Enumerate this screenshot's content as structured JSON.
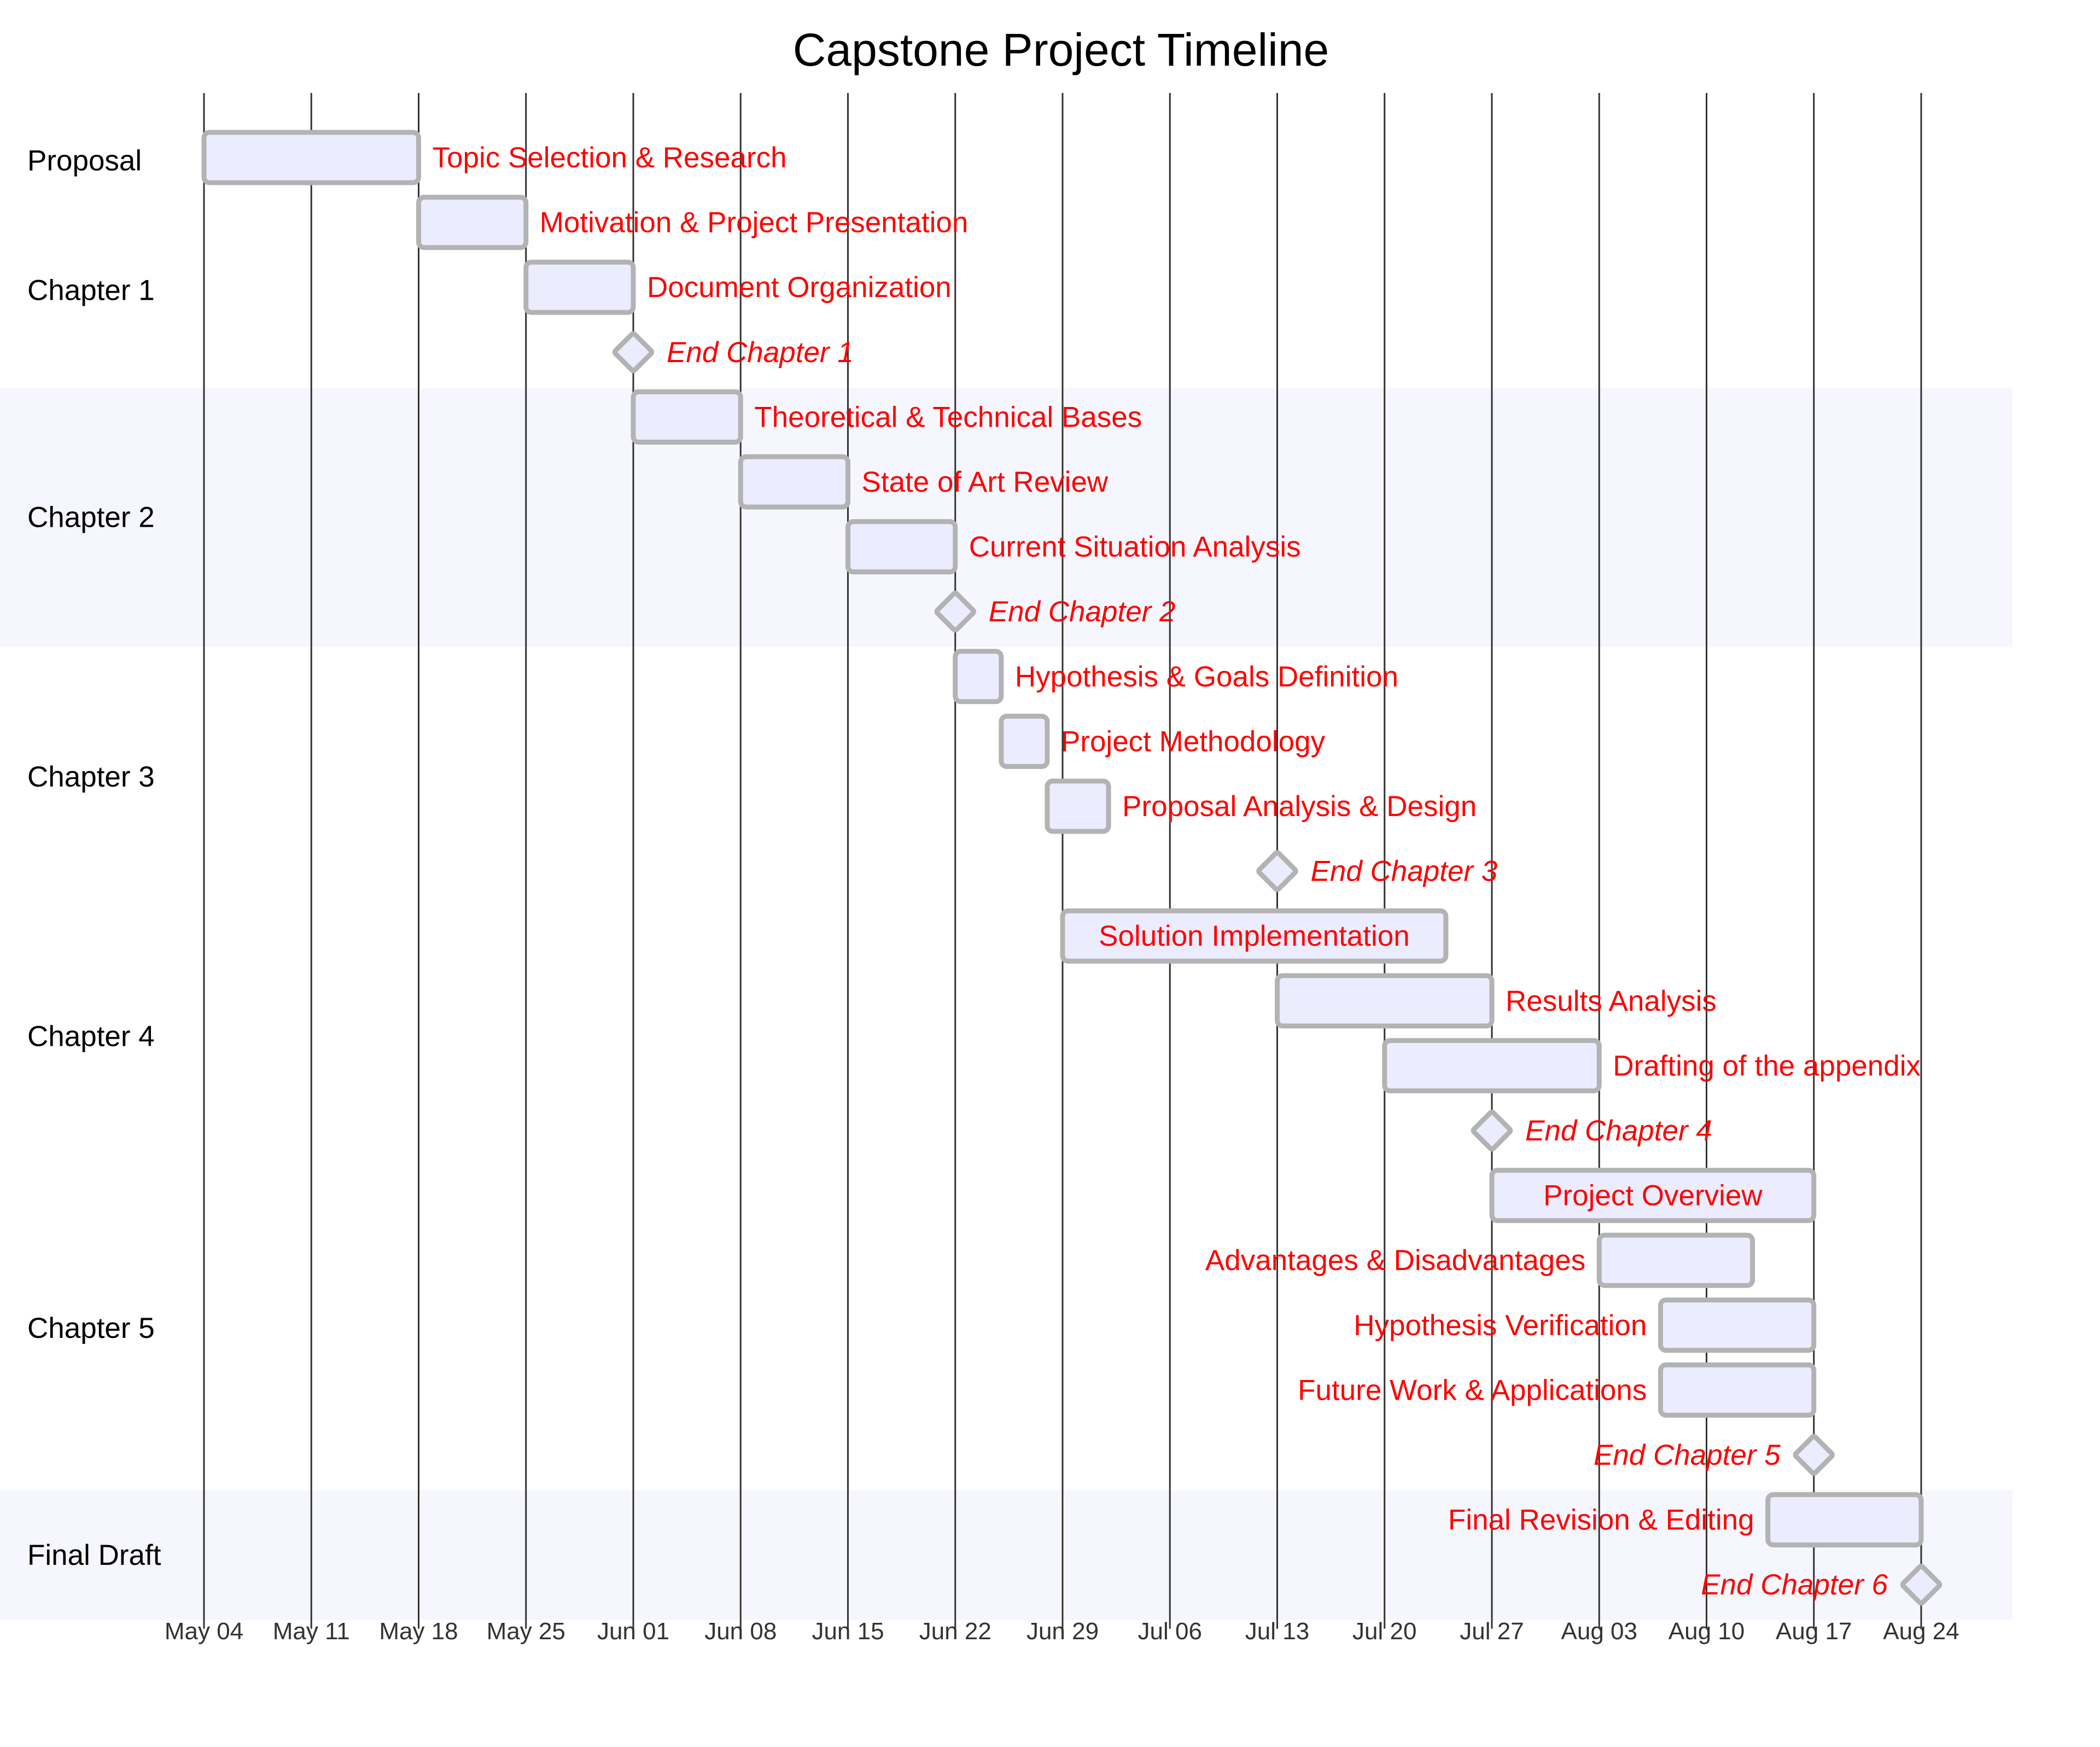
{
  "chart_data": {
    "type": "gantt",
    "title": "Capstone Project Timeline",
    "x_axis": {
      "start": "2020-05-04",
      "end": "2020-08-24",
      "ticks": [
        "May 04",
        "May 11",
        "May 18",
        "May 25",
        "Jun 01",
        "Jun 08",
        "Jun 15",
        "Jun 22",
        "Jun 29",
        "Jul 06",
        "Jul 13",
        "Jul 20",
        "Jul 27",
        "Aug 03",
        "Aug 10",
        "Aug 17",
        "Aug 24"
      ]
    },
    "grid": true,
    "sections": [
      {
        "name": "Proposal",
        "shaded": false
      },
      {
        "name": "Chapter 1",
        "shaded": false
      },
      {
        "name": "Chapter 2",
        "shaded": true
      },
      {
        "name": "Chapter 3",
        "shaded": false
      },
      {
        "name": "Chapter 4",
        "shaded": false
      },
      {
        "name": "Chapter 5",
        "shaded": false
      },
      {
        "name": "Final Draft",
        "shaded": true
      }
    ],
    "tasks": [
      {
        "section": "Proposal",
        "label": "Topic Selection & Research",
        "start": "2020-05-04",
        "end": "2020-05-18",
        "milestone": false,
        "label_position": "right"
      },
      {
        "section": "Chapter 1",
        "label": "Motivation & Project Presentation",
        "start": "2020-05-18",
        "end": "2020-05-25",
        "milestone": false,
        "label_position": "right"
      },
      {
        "section": "Chapter 1",
        "label": "Document Organization",
        "start": "2020-05-25",
        "end": "2020-06-01",
        "milestone": false,
        "label_position": "right"
      },
      {
        "section": "Chapter 1",
        "label": "End Chapter 1",
        "start": "2020-06-01",
        "milestone": true,
        "label_position": "right"
      },
      {
        "section": "Chapter 2",
        "label": "Theoretical & Technical Bases",
        "start": "2020-06-01",
        "end": "2020-06-08",
        "milestone": false,
        "label_position": "right"
      },
      {
        "section": "Chapter 2",
        "label": "State of Art Review",
        "start": "2020-06-08",
        "end": "2020-06-15",
        "milestone": false,
        "label_position": "right"
      },
      {
        "section": "Chapter 2",
        "label": "Current Situation Analysis",
        "start": "2020-06-15",
        "end": "2020-06-22",
        "milestone": false,
        "label_position": "right"
      },
      {
        "section": "Chapter 2",
        "label": "End Chapter 2",
        "start": "2020-06-22",
        "milestone": true,
        "label_position": "right"
      },
      {
        "section": "Chapter 3",
        "label": "Hypothesis & Goals Definition",
        "start": "2020-06-22",
        "end": "2020-06-25",
        "milestone": false,
        "label_position": "right"
      },
      {
        "section": "Chapter 3",
        "label": "Project Methodology",
        "start": "2020-06-25",
        "end": "2020-06-28",
        "milestone": false,
        "label_position": "right"
      },
      {
        "section": "Chapter 3",
        "label": "Proposal Analysis & Design",
        "start": "2020-06-28",
        "end": "2020-07-02",
        "milestone": false,
        "label_position": "right"
      },
      {
        "section": "Chapter 3",
        "label": "End Chapter 3",
        "start": "2020-07-13",
        "milestone": true,
        "label_position": "right"
      },
      {
        "section": "Chapter 4",
        "label": "Solution Implementation",
        "start": "2020-06-29",
        "end": "2020-07-24",
        "milestone": false,
        "label_position": "inside"
      },
      {
        "section": "Chapter 4",
        "label": "Results Analysis",
        "start": "2020-07-13",
        "end": "2020-07-27",
        "milestone": false,
        "label_position": "right"
      },
      {
        "section": "Chapter 4",
        "label": "Drafting of the appendix",
        "start": "2020-07-20",
        "end": "2020-08-03",
        "milestone": false,
        "label_position": "right"
      },
      {
        "section": "Chapter 4",
        "label": "End Chapter 4",
        "start": "2020-07-27",
        "milestone": true,
        "label_position": "right"
      },
      {
        "section": "Chapter 5",
        "label": "Project Overview",
        "start": "2020-07-27",
        "end": "2020-08-17",
        "milestone": false,
        "label_position": "inside"
      },
      {
        "section": "Chapter 5",
        "label": "Advantages & Disadvantages",
        "start": "2020-08-03",
        "end": "2020-08-13",
        "milestone": false,
        "label_position": "left"
      },
      {
        "section": "Chapter 5",
        "label": "Hypothesis Verification",
        "start": "2020-08-07",
        "end": "2020-08-17",
        "milestone": false,
        "label_position": "left"
      },
      {
        "section": "Chapter 5",
        "label": "Future Work & Applications",
        "start": "2020-08-07",
        "end": "2020-08-17",
        "milestone": false,
        "label_position": "left"
      },
      {
        "section": "Chapter 5",
        "label": "End Chapter 5",
        "start": "2020-08-17",
        "milestone": true,
        "label_position": "left"
      },
      {
        "section": "Final Draft",
        "label": "Final Revision & Editing",
        "start": "2020-08-14",
        "end": "2020-08-24",
        "milestone": false,
        "label_position": "left"
      },
      {
        "section": "Final Draft",
        "label": "End Chapter 6",
        "start": "2020-08-24",
        "milestone": true,
        "label_position": "left"
      }
    ],
    "colors": {
      "bar_fill": "#ececff",
      "bar_stroke": "#b3b3b3",
      "task_text": "#ff0000",
      "grid": "#333333",
      "section_band": "#f6f6ff",
      "tick_text": "#333333"
    }
  }
}
